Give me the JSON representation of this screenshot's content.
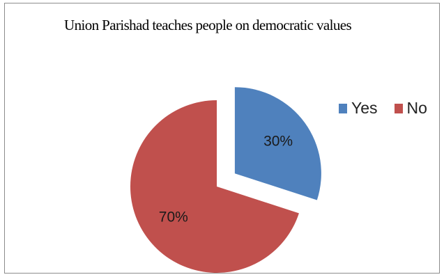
{
  "chart_data": {
    "type": "pie",
    "title": "Union Parishad teaches people on  democratic values",
    "categories": [
      "Yes",
      "No"
    ],
    "values": [
      30,
      70
    ],
    "labels": [
      "30%",
      "70%"
    ],
    "colors": [
      "#4f81bd",
      "#c0504d"
    ],
    "exploded": [
      true,
      false
    ],
    "legend_position": "right"
  }
}
